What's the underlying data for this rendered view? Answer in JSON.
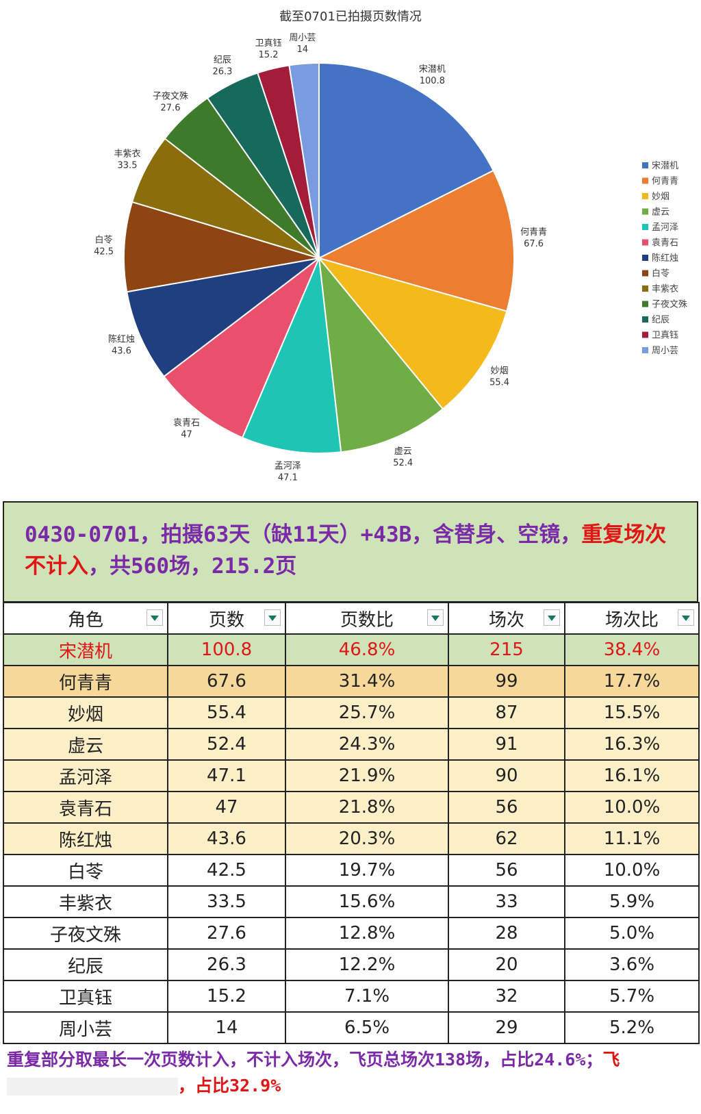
{
  "chart_data": {
    "type": "pie",
    "title": "截至0701已拍摄页数情况",
    "categories": [
      "宋潜机",
      "何青青",
      "妙烟",
      "虚云",
      "孟河泽",
      "袁青石",
      "陈红烛",
      "白苓",
      "丰紫衣",
      "子夜文殊",
      "纪辰",
      "卫真钰",
      "周小芸"
    ],
    "values": [
      100.8,
      67.6,
      55.4,
      52.4,
      47.1,
      47,
      43.6,
      42.5,
      33.5,
      27.6,
      26.3,
      15.2,
      14
    ],
    "value_labels": [
      "100.8",
      "67.6",
      "55.4",
      "52.4",
      "47.1",
      "47",
      "43.6",
      "42.5",
      "33.5",
      "27.6",
      "26.3",
      "15.2",
      "14"
    ],
    "colors": [
      "#4472c4",
      "#ed7d31",
      "#f4b91a",
      "#70ad47",
      "#1ec4b4",
      "#e8506b",
      "#1f3f80",
      "#8e4413",
      "#8a6d0d",
      "#3d7a2a",
      "#17695c",
      "#a31c3a",
      "#7b9be0"
    ],
    "legend": {
      "position": "right",
      "entries": [
        "宋潜机",
        "何青青",
        "妙烟",
        "虚云",
        "孟河泽",
        "袁青石",
        "陈红烛",
        "白苓",
        "丰紫衣",
        "子夜文殊",
        "纪辰",
        "卫真钰",
        "周小芸"
      ]
    }
  },
  "banner": {
    "text_a": "0430-0701，拍摄63天（缺11天）+43B，含替身、空镜，",
    "text_red": "重复场次不计入",
    "text_b": "，共560场，215.2页"
  },
  "table": {
    "headers": [
      "角色",
      "页数",
      "页数比",
      "场次",
      "场次比"
    ],
    "rows": [
      [
        "宋潜机",
        "100.8",
        "46.8%",
        "215",
        "38.4%"
      ],
      [
        "何青青",
        "67.6",
        "31.4%",
        "99",
        "17.7%"
      ],
      [
        "妙烟",
        "55.4",
        "25.7%",
        "87",
        "15.5%"
      ],
      [
        "虚云",
        "52.4",
        "24.3%",
        "91",
        "16.3%"
      ],
      [
        "孟河泽",
        "47.1",
        "21.9%",
        "90",
        "16.1%"
      ],
      [
        "袁青石",
        "47",
        "21.8%",
        "56",
        "10.0%"
      ],
      [
        "陈红烛",
        "43.6",
        "20.3%",
        "62",
        "11.1%"
      ],
      [
        "白苓",
        "42.5",
        "19.7%",
        "56",
        "10.0%"
      ],
      [
        "丰紫衣",
        "33.5",
        "15.6%",
        "33",
        "5.9%"
      ],
      [
        "子夜文殊",
        "27.6",
        "12.8%",
        "28",
        "5.0%"
      ],
      [
        "纪辰",
        "26.3",
        "12.2%",
        "20",
        "3.6%"
      ],
      [
        "卫真钰",
        "15.2",
        "7.1%",
        "32",
        "5.7%"
      ],
      [
        "周小芸",
        "14",
        "6.5%",
        "29",
        "5.2%"
      ]
    ]
  },
  "footer": {
    "text_a": "重复部分取最长一次页数计入，不计入场次，飞页总场次138场，占比24.6%；",
    "text_red_a": "飞",
    "text_red_b": "，占比32.9%"
  }
}
